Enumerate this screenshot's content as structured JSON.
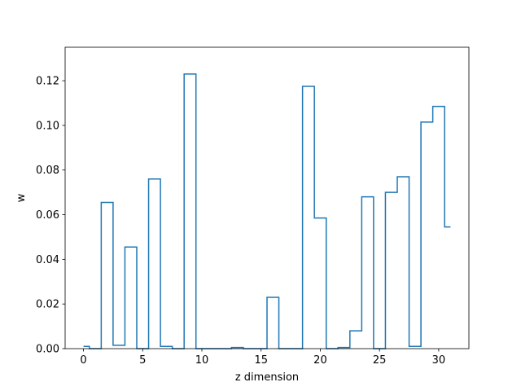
{
  "chart_data": {
    "type": "line",
    "drawstyle": "steps-mid",
    "title": "",
    "xlabel": "z dimension",
    "ylabel": "w",
    "xlim": [
      -1.55,
      32.55
    ],
    "ylim": [
      0,
      0.135
    ],
    "x_ticks": [
      0,
      5,
      10,
      15,
      20,
      25,
      30
    ],
    "y_ticks": [
      0.0,
      0.02,
      0.04,
      0.06,
      0.08,
      0.1,
      0.12
    ],
    "y_tick_labels": [
      "0.00",
      "0.02",
      "0.04",
      "0.06",
      "0.08",
      "0.10",
      "0.12"
    ],
    "grid": false,
    "legend": "none",
    "color": "#1f77b4",
    "x": [
      0,
      1,
      2,
      3,
      4,
      5,
      6,
      7,
      8,
      9,
      10,
      11,
      12,
      13,
      14,
      15,
      16,
      17,
      18,
      19,
      20,
      21,
      22,
      23,
      24,
      25,
      26,
      27,
      28,
      29,
      30,
      31
    ],
    "values": [
      0.001,
      0.0,
      0.0655,
      0.0015,
      0.0455,
      0.0,
      0.076,
      0.001,
      0.0,
      0.123,
      0.0,
      0.0,
      0.0,
      0.0005,
      0.0,
      0.0,
      0.023,
      0.0,
      0.0,
      0.1175,
      0.0585,
      0.0,
      0.0005,
      0.008,
      0.068,
      0.0,
      0.07,
      0.077,
      0.001,
      0.1015,
      0.1085,
      0.0545
    ]
  }
}
